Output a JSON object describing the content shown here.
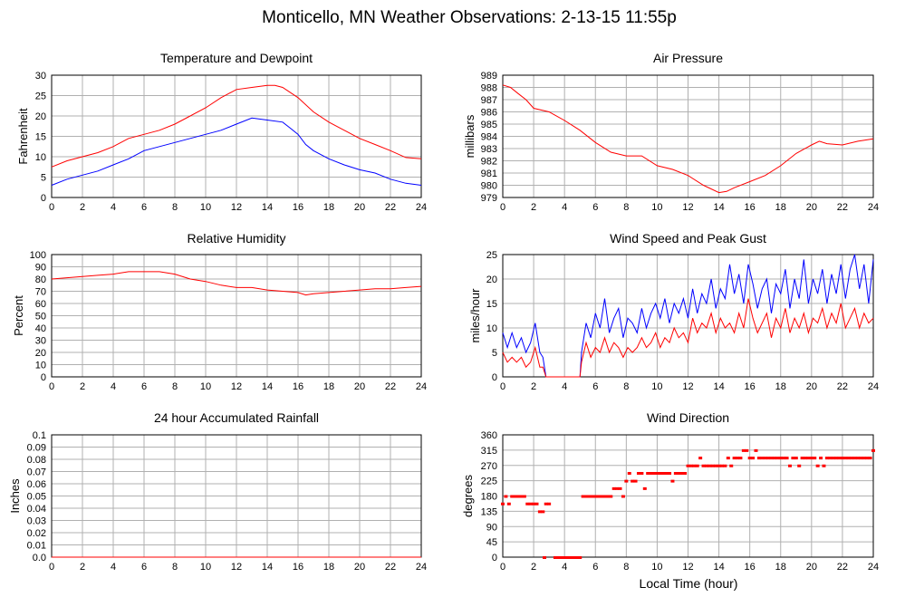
{
  "title": "Monticello, MN Weather Observations: 2-13-15 11:55p",
  "xlabel": "Local Time (hour)",
  "colors": {
    "red": "#ff0000",
    "blue": "#0000ff",
    "grid": "#b0b0b0"
  },
  "chart_data": [
    {
      "id": "temp",
      "type": "line",
      "title": "Temperature and Dewpoint",
      "ylabel": "Fahrenheit",
      "xlim": [
        0,
        24
      ],
      "ylim": [
        0,
        30
      ],
      "xticks": [
        0,
        2,
        4,
        6,
        8,
        10,
        12,
        14,
        16,
        18,
        20,
        22,
        24
      ],
      "yticks": [
        "0",
        "5",
        "10",
        "15",
        "20",
        "25",
        "30"
      ],
      "grid": true,
      "series": [
        {
          "color": "#ff0000",
          "x": [
            0,
            1,
            2,
            3,
            4,
            5,
            6,
            7,
            8,
            9,
            10,
            11,
            12,
            13,
            14,
            14.5,
            15,
            16,
            17,
            18,
            19,
            20,
            21,
            22,
            23,
            24
          ],
          "y": [
            7.5,
            9,
            10,
            11,
            12.5,
            14.5,
            15.5,
            16.5,
            18,
            20,
            22,
            24.5,
            26.5,
            27,
            27.5,
            27.5,
            27,
            24.5,
            21,
            18.5,
            16.5,
            14.5,
            13,
            11.5,
            9.8,
            9.5
          ]
        },
        {
          "color": "#0000ff",
          "x": [
            0,
            1,
            2,
            3,
            4,
            5,
            6,
            7,
            8,
            9,
            10,
            11,
            12,
            13,
            14,
            15,
            15.5,
            16,
            16.5,
            17,
            18,
            19,
            20,
            21,
            22,
            23,
            24
          ],
          "y": [
            3,
            4.5,
            5.5,
            6.5,
            8,
            9.5,
            11.5,
            12.5,
            13.5,
            14.5,
            15.5,
            16.5,
            18,
            19.5,
            19,
            18.5,
            17,
            15.5,
            13,
            11.5,
            9.5,
            8,
            6.8,
            6,
            4.5,
            3.5,
            3
          ]
        }
      ]
    },
    {
      "id": "pressure",
      "type": "line",
      "title": "Air Pressure",
      "ylabel": "millibars",
      "xlim": [
        0,
        24
      ],
      "ylim": [
        979,
        989
      ],
      "xticks": [
        0,
        2,
        4,
        6,
        8,
        10,
        12,
        14,
        16,
        18,
        20,
        22,
        24
      ],
      "yticks": [
        "979",
        "980",
        "981",
        "982",
        "983",
        "984",
        "985",
        "986",
        "987",
        "988",
        "989"
      ],
      "grid": true,
      "series": [
        {
          "color": "#ff0000",
          "x": [
            0,
            0.5,
            1,
            1.5,
            2,
            3,
            4,
            5,
            6,
            7,
            8,
            9,
            10,
            11,
            12,
            13,
            14,
            14.5,
            15,
            16,
            17,
            18,
            19,
            20,
            20.5,
            21,
            22,
            23,
            24
          ],
          "y": [
            988.2,
            988,
            987.5,
            987,
            986.3,
            986,
            985.3,
            984.5,
            983.5,
            982.7,
            982.4,
            982.4,
            981.6,
            981.3,
            980.8,
            980,
            979.4,
            979.5,
            979.8,
            980.3,
            980.8,
            981.6,
            982.6,
            983.3,
            983.6,
            983.4,
            983.3,
            983.6,
            983.8
          ]
        }
      ]
    },
    {
      "id": "humidity",
      "type": "line",
      "title": "Relative Humidity",
      "ylabel": "Percent",
      "xlim": [
        0,
        24
      ],
      "ylim": [
        0,
        100
      ],
      "xticks": [
        0,
        2,
        4,
        6,
        8,
        10,
        12,
        14,
        16,
        18,
        20,
        22,
        24
      ],
      "yticks": [
        "0",
        "10",
        "20",
        "30",
        "40",
        "50",
        "60",
        "70",
        "80",
        "90",
        "100"
      ],
      "grid": true,
      "series": [
        {
          "color": "#ff0000",
          "x": [
            0,
            1,
            2,
            3,
            4,
            5,
            6,
            7,
            8,
            9,
            10,
            11,
            12,
            13,
            14,
            15,
            16,
            16.5,
            17,
            18,
            19,
            20,
            21,
            22,
            23,
            24
          ],
          "y": [
            80,
            81,
            82,
            83,
            84,
            86,
            86,
            86,
            84,
            80,
            78,
            75,
            73,
            73,
            71,
            70,
            69,
            67,
            68,
            69,
            70,
            71,
            72,
            72,
            73,
            74
          ]
        }
      ]
    },
    {
      "id": "wind",
      "type": "line",
      "title": "Wind Speed and Peak Gust",
      "ylabel": "miles/hour",
      "xlim": [
        0,
        24
      ],
      "ylim": [
        0,
        25
      ],
      "xticks": [
        0,
        2,
        4,
        6,
        8,
        10,
        12,
        14,
        16,
        18,
        20,
        22,
        24
      ],
      "yticks": [
        "0",
        "5",
        "10",
        "15",
        "20",
        "25"
      ],
      "grid": true,
      "series": [
        {
          "color": "#0000ff",
          "x": [
            0,
            0.3,
            0.6,
            0.9,
            1.2,
            1.5,
            1.8,
            2.1,
            2.4,
            2.6,
            2.8,
            3.0,
            4.0,
            5.0,
            5.1,
            5.4,
            5.7,
            6.0,
            6.3,
            6.6,
            6.9,
            7.2,
            7.5,
            7.8,
            8.1,
            8.4,
            8.7,
            9.0,
            9.3,
            9.6,
            9.9,
            10.2,
            10.5,
            10.8,
            11.1,
            11.4,
            11.7,
            12.0,
            12.3,
            12.6,
            12.9,
            13.2,
            13.5,
            13.8,
            14.1,
            14.4,
            14.7,
            15.0,
            15.3,
            15.6,
            15.9,
            16.2,
            16.5,
            16.8,
            17.1,
            17.4,
            17.7,
            18.0,
            18.3,
            18.6,
            18.9,
            19.2,
            19.5,
            19.8,
            20.1,
            20.4,
            20.7,
            21.0,
            21.3,
            21.6,
            21.9,
            22.2,
            22.5,
            22.8,
            23.1,
            23.4,
            23.7,
            24.0
          ],
          "y": [
            9,
            6,
            9,
            6,
            8,
            5,
            7,
            11,
            5,
            4,
            0,
            0,
            0,
            0,
            5,
            11,
            8,
            13,
            10,
            16,
            9,
            12,
            14,
            8,
            12,
            11,
            9,
            14,
            10,
            13,
            15,
            12,
            16,
            11,
            15,
            13,
            16,
            12,
            18,
            13,
            17,
            15,
            20,
            14,
            18,
            16,
            23,
            17,
            21,
            15,
            23,
            19,
            14,
            18,
            20,
            13,
            19,
            17,
            22,
            14,
            20,
            16,
            24,
            15,
            20,
            17,
            22,
            15,
            21,
            17,
            23,
            16,
            22,
            25,
            18,
            23,
            15,
            24
          ]
        },
        {
          "color": "#ff0000",
          "x": [
            0,
            0.3,
            0.6,
            0.9,
            1.2,
            1.5,
            1.8,
            2.1,
            2.4,
            2.6,
            2.8,
            3.0,
            4.0,
            5.0,
            5.1,
            5.4,
            5.7,
            6.0,
            6.3,
            6.6,
            6.9,
            7.2,
            7.5,
            7.8,
            8.1,
            8.4,
            8.7,
            9.0,
            9.3,
            9.6,
            9.9,
            10.2,
            10.5,
            10.8,
            11.1,
            11.4,
            11.7,
            12.0,
            12.3,
            12.6,
            12.9,
            13.2,
            13.5,
            13.8,
            14.1,
            14.4,
            14.7,
            15.0,
            15.3,
            15.6,
            15.9,
            16.2,
            16.5,
            16.8,
            17.1,
            17.4,
            17.7,
            18.0,
            18.3,
            18.6,
            18.9,
            19.2,
            19.5,
            19.8,
            20.1,
            20.4,
            20.7,
            21.0,
            21.3,
            21.6,
            21.9,
            22.2,
            22.5,
            22.8,
            23.1,
            23.4,
            23.7,
            24.0
          ],
          "y": [
            5,
            3,
            4,
            3,
            4,
            2,
            3,
            6,
            2,
            2,
            0,
            0,
            0,
            0,
            3,
            7,
            4,
            6,
            5,
            8,
            5,
            7,
            6,
            4,
            6,
            5,
            6,
            8,
            6,
            7,
            9,
            6,
            8,
            7,
            10,
            8,
            9,
            7,
            12,
            9,
            11,
            10,
            13,
            9,
            12,
            10,
            11,
            9,
            13,
            10,
            16,
            12,
            9,
            11,
            13,
            8,
            12,
            10,
            14,
            9,
            12,
            10,
            13,
            9,
            12,
            11,
            14,
            10,
            13,
            11,
            15,
            10,
            12,
            14,
            10,
            13,
            11,
            12
          ]
        }
      ]
    },
    {
      "id": "rain",
      "type": "line",
      "title": "24 hour Accumulated Rainfall",
      "ylabel": "Inches",
      "xlim": [
        0,
        24
      ],
      "ylim": [
        0,
        0.1
      ],
      "xticks": [
        0,
        2,
        4,
        6,
        8,
        10,
        12,
        14,
        16,
        18,
        20,
        22,
        24
      ],
      "yticks": [
        "0.0",
        "0.01",
        "0.02",
        "0.03",
        "0.04",
        "0.05",
        "0.06",
        "0.07",
        "0.08",
        "0.09",
        "0.1"
      ],
      "grid": true,
      "series": [
        {
          "color": "#ff0000",
          "x": [
            0,
            24
          ],
          "y": [
            0,
            0
          ]
        }
      ]
    },
    {
      "id": "direction",
      "type": "scatter",
      "title": "Wind Direction",
      "ylabel": "degrees",
      "xlim": [
        0,
        24
      ],
      "ylim": [
        0,
        360
      ],
      "xticks": [
        0,
        2,
        4,
        6,
        8,
        10,
        12,
        14,
        16,
        18,
        20,
        22,
        24
      ],
      "yticks": [
        "0",
        "45",
        "90",
        "135",
        "180",
        "225",
        "270",
        "315",
        "360"
      ],
      "grid": true,
      "points_x": [
        0.0,
        0.2,
        0.4,
        0.6,
        0.8,
        1.0,
        1.2,
        1.4,
        1.6,
        1.8,
        2.0,
        2.2,
        2.4,
        2.6,
        2.8,
        3.0,
        2.7,
        3.4,
        3.6,
        3.8,
        4.0,
        4.2,
        4.4,
        4.6,
        4.8,
        5.0,
        5.2,
        5.4,
        5.6,
        5.8,
        6.0,
        6.2,
        6.4,
        6.6,
        6.8,
        7.0,
        7.2,
        7.4,
        7.6,
        7.8,
        8.0,
        8.2,
        8.4,
        8.6,
        8.8,
        9.0,
        9.2,
        9.4,
        9.6,
        9.8,
        10.0,
        10.2,
        10.4,
        10.6,
        10.8,
        11.0,
        11.2,
        11.4,
        11.6,
        11.8,
        12.0,
        12.2,
        12.4,
        12.6,
        12.8,
        13.0,
        13.2,
        13.4,
        13.6,
        13.8,
        14.0,
        14.2,
        14.4,
        14.6,
        14.8,
        15.0,
        15.2,
        15.4,
        15.6,
        15.8,
        16.0,
        16.2,
        16.4,
        16.6,
        16.8,
        17.0,
        17.2,
        17.4,
        17.6,
        17.8,
        18.0,
        18.2,
        18.4,
        18.6,
        18.8,
        19.0,
        19.2,
        19.4,
        19.6,
        19.8,
        20.0,
        20.2,
        20.4,
        20.6,
        20.8,
        21.0,
        21.2,
        21.4,
        21.6,
        21.8,
        22.0,
        22.2,
        22.4,
        22.6,
        22.8,
        23.0,
        23.2,
        23.4,
        23.6,
        23.8,
        24.0
      ],
      "points_y": [
        158,
        180,
        158,
        180,
        180,
        180,
        180,
        180,
        158,
        158,
        158,
        158,
        135,
        135,
        158,
        158,
        0,
        0,
        0,
        0,
        0,
        0,
        0,
        0,
        0,
        0,
        180,
        180,
        180,
        180,
        180,
        180,
        180,
        180,
        180,
        180,
        203,
        203,
        203,
        180,
        225,
        248,
        225,
        225,
        248,
        248,
        203,
        248,
        248,
        248,
        248,
        248,
        248,
        248,
        248,
        225,
        248,
        248,
        248,
        248,
        270,
        270,
        270,
        270,
        293,
        270,
        270,
        270,
        270,
        270,
        270,
        270,
        270,
        293,
        270,
        293,
        293,
        293,
        315,
        315,
        293,
        293,
        315,
        293,
        293,
        293,
        293,
        293,
        293,
        293,
        293,
        293,
        293,
        270,
        293,
        293,
        270,
        293,
        293,
        293,
        293,
        293,
        270,
        293,
        270,
        293,
        293,
        293,
        293,
        293,
        293,
        293,
        293,
        293,
        293,
        293,
        293,
        293,
        293,
        293,
        315
      ]
    }
  ]
}
